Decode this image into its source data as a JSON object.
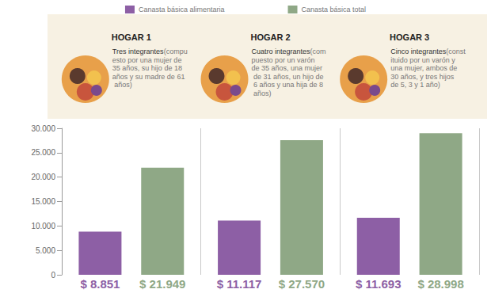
{
  "chart_data": {
    "type": "bar",
    "categories": [
      "HOGAR 1",
      "HOGAR 2",
      "HOGAR 3"
    ],
    "annotations": [
      {
        "heading": "Tres integrantes",
        "text": "(compuesto por una mujer de 35 años, su hijo de 18 años y su madre de 61 años)"
      },
      {
        "heading": "Cuatro integrantes",
        "text": "(compuesto por un varón de 35 años, una mujer de 31 años, un hijo de 6 años y una hija de 8 años)"
      },
      {
        "heading": "Cinco integrantes",
        "text": "(constituido por un varón y una mujer, ambos de 30 años, y tres hijos de 5, 3 y 1 año)"
      }
    ],
    "series": [
      {
        "name": "Canasta básica alimentaria",
        "color": "#8d5fa5",
        "values": [
          8851,
          11117,
          11693
        ],
        "value_labels": [
          "$ 8.851",
          "$ 11.117",
          "$ 11.693"
        ]
      },
      {
        "name": "Canasta básica total",
        "color": "#8fa886",
        "values": [
          21949,
          27570,
          28998
        ],
        "value_labels": [
          "$ 21.949",
          "$ 27.570",
          "$ 28.998"
        ]
      }
    ],
    "ylim": [
      0,
      30000
    ],
    "yticks": [
      0,
      {
        "value": 5000,
        "label": "5.000"
      },
      {
        "value": 10000,
        "label": "10.000"
      },
      {
        "value": 15000,
        "label": "15.000"
      },
      {
        "value": 20000,
        "label": "20.000"
      },
      {
        "value": 25000,
        "label": "25.000"
      },
      {
        "value": 30000,
        "label": "30.000"
      }
    ],
    "grid": false,
    "legend": "top",
    "data_labels": true
  }
}
